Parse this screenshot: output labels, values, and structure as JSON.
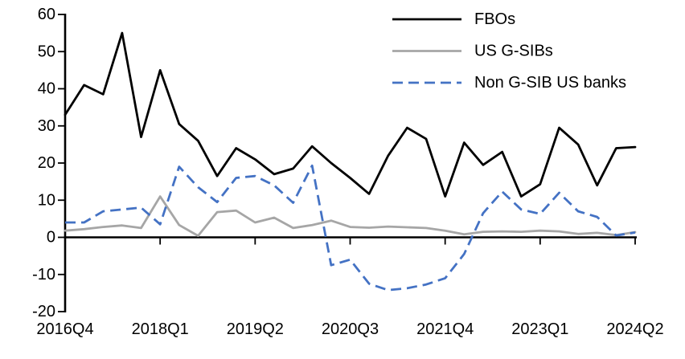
{
  "chart_data": {
    "type": "line",
    "title": "",
    "categories": [
      "2016Q4",
      "2017Q1",
      "2017Q2",
      "2017Q3",
      "2017Q4",
      "2018Q1",
      "2018Q2",
      "2018Q3",
      "2018Q4",
      "2019Q1",
      "2019Q2",
      "2019Q3",
      "2019Q4",
      "2020Q1",
      "2020Q2",
      "2020Q3",
      "2020Q4",
      "2021Q1",
      "2021Q2",
      "2021Q3",
      "2021Q4",
      "2022Q1",
      "2022Q2",
      "2022Q3",
      "2022Q4",
      "2023Q1",
      "2023Q2",
      "2023Q3",
      "2023Q4",
      "2024Q1",
      "2024Q2"
    ],
    "x_tick_every": 5,
    "x_tick_labels": [
      "2016Q4",
      "2018Q1",
      "2019Q2",
      "2020Q3",
      "2021Q4",
      "2023Q1",
      "2024Q2"
    ],
    "ylim": [
      -20,
      60
    ],
    "ytick_step": 10,
    "ytick_labels": [
      "60",
      "50",
      "40",
      "30",
      "20",
      "10",
      "0",
      "-10",
      "-20"
    ],
    "grid": false,
    "legend_position": "top-right",
    "series": [
      {
        "name": "FBOs",
        "color": "#000000",
        "dashed": false,
        "values": [
          33,
          41,
          38.5,
          55,
          27,
          45,
          30.5,
          26,
          16.5,
          24,
          21,
          17,
          18.5,
          24.5,
          20,
          16,
          11.7,
          22,
          29.5,
          26.5,
          11,
          25.5,
          19.5,
          23,
          11,
          14.3,
          29.5,
          25,
          14,
          24,
          24.3
        ]
      },
      {
        "name": "US G-SIBs",
        "color": "#a6a6a6",
        "dashed": false,
        "values": [
          1.8,
          2.2,
          2.8,
          3.2,
          2.5,
          11,
          3.3,
          0.4,
          6.8,
          7.2,
          4,
          5.3,
          2.5,
          3.3,
          4.5,
          2.8,
          2.6,
          2.9,
          2.7,
          2.5,
          1.8,
          0.8,
          1.5,
          1.6,
          1.5,
          1.8,
          1.6,
          0.9,
          1.2,
          0.6,
          1.4
        ]
      },
      {
        "name": "Non G-SIB US banks",
        "color": "#4472c4",
        "dashed": true,
        "values": [
          4,
          4,
          7,
          7.5,
          8,
          3.5,
          19,
          13.5,
          9.5,
          16,
          16.5,
          14,
          9.3,
          19.3,
          -7.5,
          -6,
          -12.5,
          -14.2,
          -13.7,
          -12.7,
          -11,
          -4.5,
          6.5,
          12.3,
          7.5,
          6.3,
          12,
          7,
          5.5,
          0.5,
          1.3
        ]
      }
    ],
    "colors": {
      "axis": "#000000",
      "background": "#ffffff",
      "accent_blue": "#4472c4",
      "gray": "#a6a6a6"
    }
  }
}
